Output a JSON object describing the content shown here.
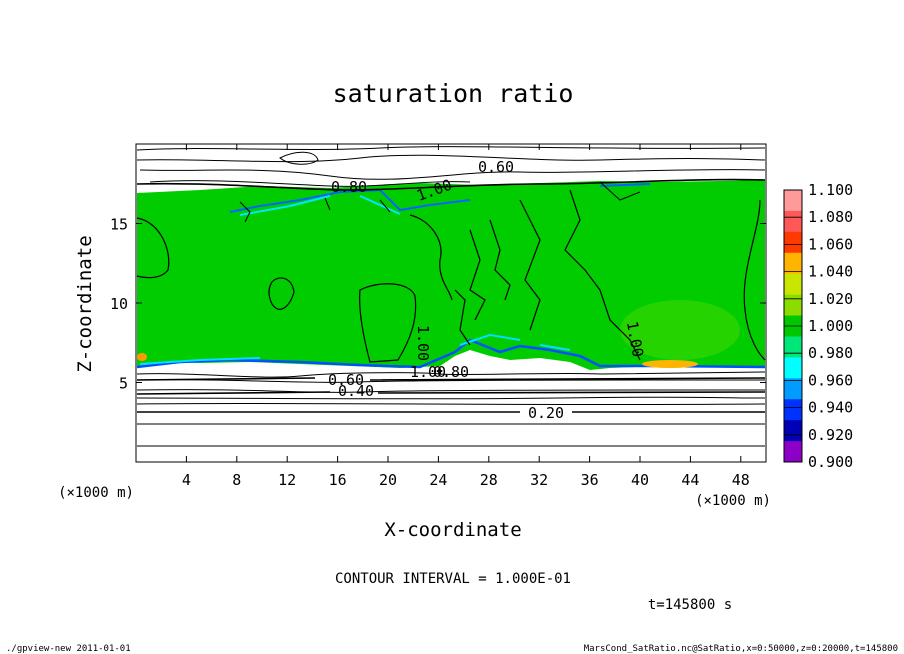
{
  "chart_data": {
    "type": "heatmap",
    "title": "saturation ratio",
    "xlabel": "X-coordinate",
    "ylabel": "Z-coordinate",
    "x_unit_label": "(×1000 m)",
    "y_unit_label": "(×1000 m)",
    "xlim": [
      0,
      50
    ],
    "ylim": [
      0,
      20
    ],
    "x_ticks": [
      "4",
      "8",
      "12",
      "16",
      "20",
      "24",
      "28",
      "32",
      "36",
      "40",
      "44",
      "48"
    ],
    "y_ticks": [
      "5",
      "10",
      "15"
    ],
    "contour_interval_text": "CONTOUR INTERVAL = 1.000E-01",
    "time_text": "t=145800 s",
    "contour_labels": [
      "0.60",
      "0.80",
      "1.00",
      "1.00",
      "1.00",
      "1.00",
      "0.60",
      "0.40",
      "0.80",
      "0.20"
    ],
    "colorbar": {
      "levels": [
        "1.100",
        "1.080",
        "1.060",
        "1.040",
        "1.020",
        "1.000",
        "0.980",
        "0.960",
        "0.940",
        "0.920",
        "0.900"
      ],
      "colors": [
        "#ff9a9a",
        "#ff5858",
        "#ff3a00",
        "#ffb400",
        "#c8e600",
        "#8cdc00",
        "#00c800",
        "#00e678",
        "#00ffff",
        "#009cff",
        "#0032ff",
        "#0000b4",
        "#8c00c8"
      ]
    }
  },
  "footer": {
    "left": "./gpview-new  2011-01-01",
    "right": "MarsCond_SatRatio.nc@SatRatio,x=0:50000,z=0:20000,t=145800"
  }
}
